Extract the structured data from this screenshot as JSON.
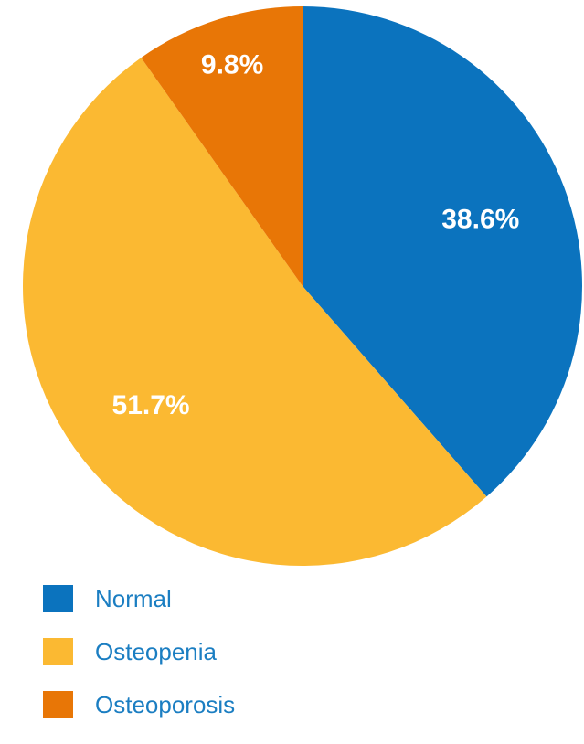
{
  "chart_data": {
    "type": "pie",
    "title": "",
    "categories": [
      "Normal",
      "Osteopenia",
      "Osteoporosis"
    ],
    "values": [
      38.6,
      51.7,
      9.8
    ],
    "labels": [
      "38.6%",
      "51.7%",
      "9.8%"
    ],
    "colors": [
      "#0B73BE",
      "#FBB932",
      "#E87606"
    ],
    "start_angle_deg": 0,
    "direction": "clockwise",
    "legend_position": "bottom-left",
    "label_color": "#FFFFFF",
    "legend_text_color": "#1B7EC2"
  }
}
